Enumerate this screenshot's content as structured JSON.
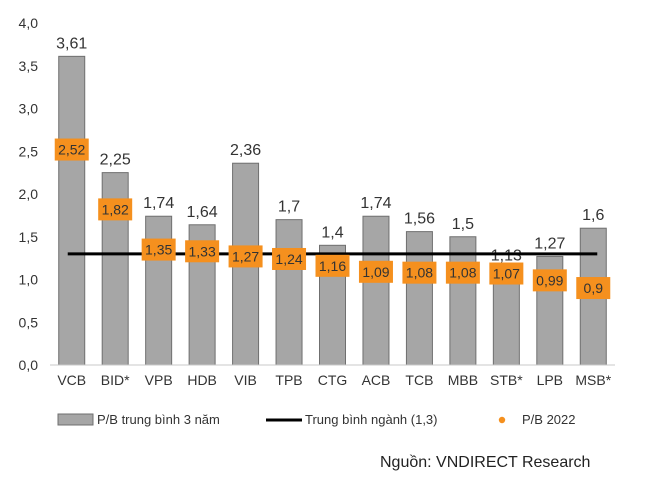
{
  "chart_data": {
    "type": "bar",
    "categories": [
      "VCB",
      "BID*",
      "VPB",
      "HDB",
      "VIB",
      "TPB",
      "CTG",
      "ACB",
      "TCB",
      "MBB",
      "STB*",
      "LPB",
      "MSB*"
    ],
    "series": [
      {
        "name": "P/B trung bình 3 năm",
        "kind": "bar",
        "color": "#a6a6a6",
        "values": [
          3.61,
          2.25,
          1.74,
          1.64,
          2.36,
          1.7,
          1.4,
          1.74,
          1.56,
          1.5,
          1.13,
          1.27,
          1.6
        ],
        "labels": [
          "3,61",
          "2,25",
          "1,74",
          "1,64",
          "2,36",
          "1,7",
          "1,4",
          "1,74",
          "1,56",
          "1,5",
          "1,13",
          "1,27",
          "1,6"
        ]
      },
      {
        "name": "Trung bình ngành (1,3)",
        "kind": "hline",
        "color": "#000000",
        "value": 1.3
      },
      {
        "name": "P/B 2022",
        "kind": "point",
        "color": "#f5901e",
        "values": [
          2.52,
          1.82,
          1.35,
          1.33,
          1.27,
          1.24,
          1.16,
          1.09,
          1.08,
          1.08,
          1.07,
          0.99,
          0.9
        ],
        "labels": [
          "2,52",
          "1,82",
          "1,35",
          "1,33",
          "1,27",
          "1,24",
          "1,16",
          "1,09",
          "1,08",
          "1,08",
          "1,07",
          "0,99",
          "0,9"
        ]
      }
    ],
    "ylim": [
      0,
      4.0
    ],
    "yticks": [
      0,
      0.5,
      1.0,
      1.5,
      2.0,
      2.5,
      3.0,
      3.5,
      4.0
    ],
    "ytick_labels": [
      "0,0",
      "0,5",
      "1,0",
      "1,5",
      "2,0",
      "2,5",
      "3,0",
      "3,5",
      "4,0"
    ],
    "title": "",
    "xlabel": "",
    "ylabel": "",
    "legend_position": "bottom",
    "grid": false
  },
  "source": "Nguồn: VNDIRECT Research"
}
